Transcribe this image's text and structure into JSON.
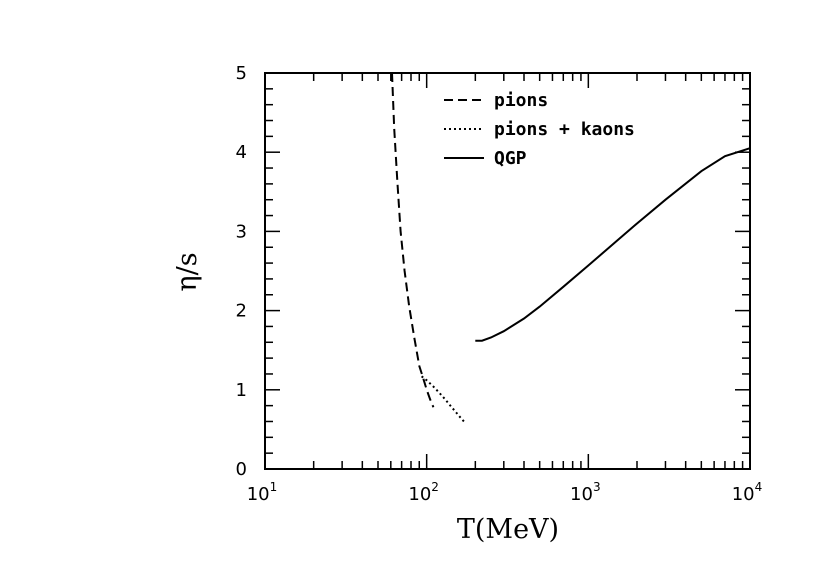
{
  "chart_data": {
    "type": "line",
    "title": "",
    "xlabel": "T(MeV)",
    "ylabel": "η/s",
    "xscale": "log",
    "xlim": [
      10,
      10000
    ],
    "ylim": [
      0,
      5
    ],
    "x_tick_labels": [
      {
        "base": "10",
        "exp": "1"
      },
      {
        "base": "10",
        "exp": "2"
      },
      {
        "base": "10",
        "exp": "3"
      },
      {
        "base": "10",
        "exp": "4"
      }
    ],
    "y_tick_labels": [
      "0",
      "1",
      "2",
      "3",
      "4",
      "5"
    ],
    "legend_position": "top-center",
    "series": [
      {
        "name": "pions",
        "style": "dashed",
        "x": [
          61,
          63,
          66,
          69,
          73,
          78,
          84,
          90,
          95,
          100,
          105,
          110
        ],
        "y": [
          5.0,
          4.3,
          3.6,
          3.0,
          2.5,
          2.05,
          1.65,
          1.3,
          1.15,
          1.0,
          0.88,
          0.78
        ]
      },
      {
        "name": "pions + kaons",
        "style": "dotted",
        "x": [
          93,
          100,
          110,
          120,
          130,
          140,
          150,
          160,
          170
        ],
        "y": [
          1.17,
          1.12,
          1.04,
          0.96,
          0.88,
          0.8,
          0.73,
          0.66,
          0.6
        ]
      },
      {
        "name": "QGP",
        "style": "solid",
        "x": [
          200,
          220,
          250,
          300,
          400,
          500,
          700,
          1000,
          1500,
          2000,
          3000,
          5000,
          7000,
          10000
        ],
        "y": [
          1.62,
          1.62,
          1.66,
          1.74,
          1.9,
          2.05,
          2.3,
          2.57,
          2.88,
          3.1,
          3.4,
          3.76,
          3.95,
          4.05
        ]
      }
    ]
  }
}
